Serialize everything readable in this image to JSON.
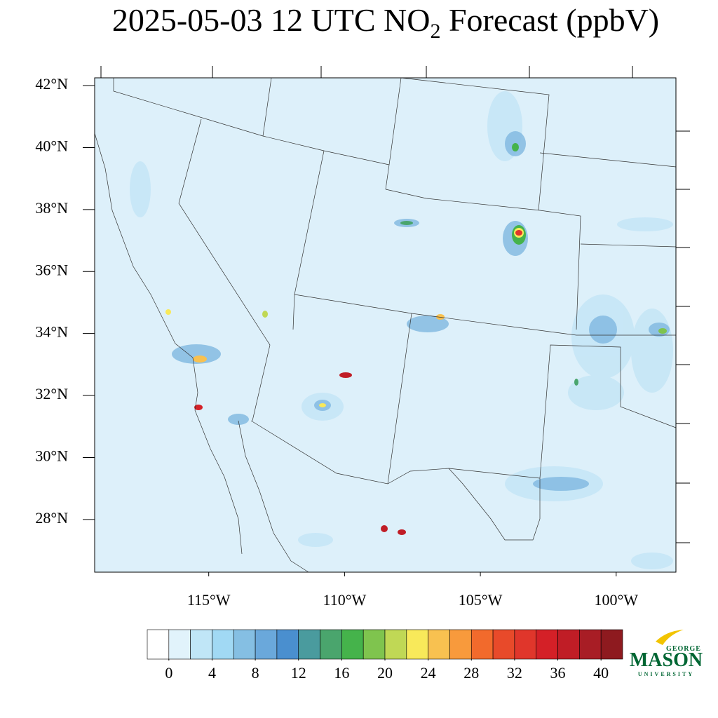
{
  "map": {
    "title": {
      "prefix": "2025-05-03 12 UTC NO",
      "subscript": "2",
      "suffix": " Forecast (ppbV)"
    },
    "lat_range": [
      26.3,
      42.25
    ],
    "lon_range": [
      -119.2,
      -97.8
    ],
    "lat_ticks": [
      {
        "value": 42,
        "label": "42°N"
      },
      {
        "value": 40,
        "label": "40°N"
      },
      {
        "value": 38,
        "label": "38°N"
      },
      {
        "value": 36,
        "label": "36°N"
      },
      {
        "value": 34,
        "label": "34°N"
      },
      {
        "value": 32,
        "label": "32°N"
      },
      {
        "value": 30,
        "label": "30°N"
      },
      {
        "value": 28,
        "label": "28°N"
      }
    ],
    "lon_ticks": [
      {
        "value": -115,
        "label": "115°W"
      },
      {
        "value": -110,
        "label": "110°W"
      },
      {
        "value": -105,
        "label": "105°W"
      },
      {
        "value": -100,
        "label": "100°W"
      }
    ],
    "colorbar": {
      "lim": [
        -2,
        42
      ],
      "colors": [
        "#ffffff",
        "#e1f3fb",
        "#c0e6f7",
        "#a1d9f4",
        "#85bfe3",
        "#6aa8db",
        "#4a8fcf",
        "#4a9b9e",
        "#4aa56d",
        "#45b34b",
        "#7fc44e",
        "#c0d855",
        "#f8e95a",
        "#f8c150",
        "#f89a3c",
        "#f26a2c",
        "#e84a2a",
        "#e0362b",
        "#d42027",
        "#c01d26",
        "#a81d25",
        "#8e1a1f"
      ],
      "ticks": [
        0,
        4,
        8,
        12,
        16,
        20,
        24,
        28,
        32,
        36,
        40
      ]
    },
    "logo": {
      "top": "GEORGE",
      "main": "MASON",
      "bottom": "UNIVERSITY"
    }
  }
}
